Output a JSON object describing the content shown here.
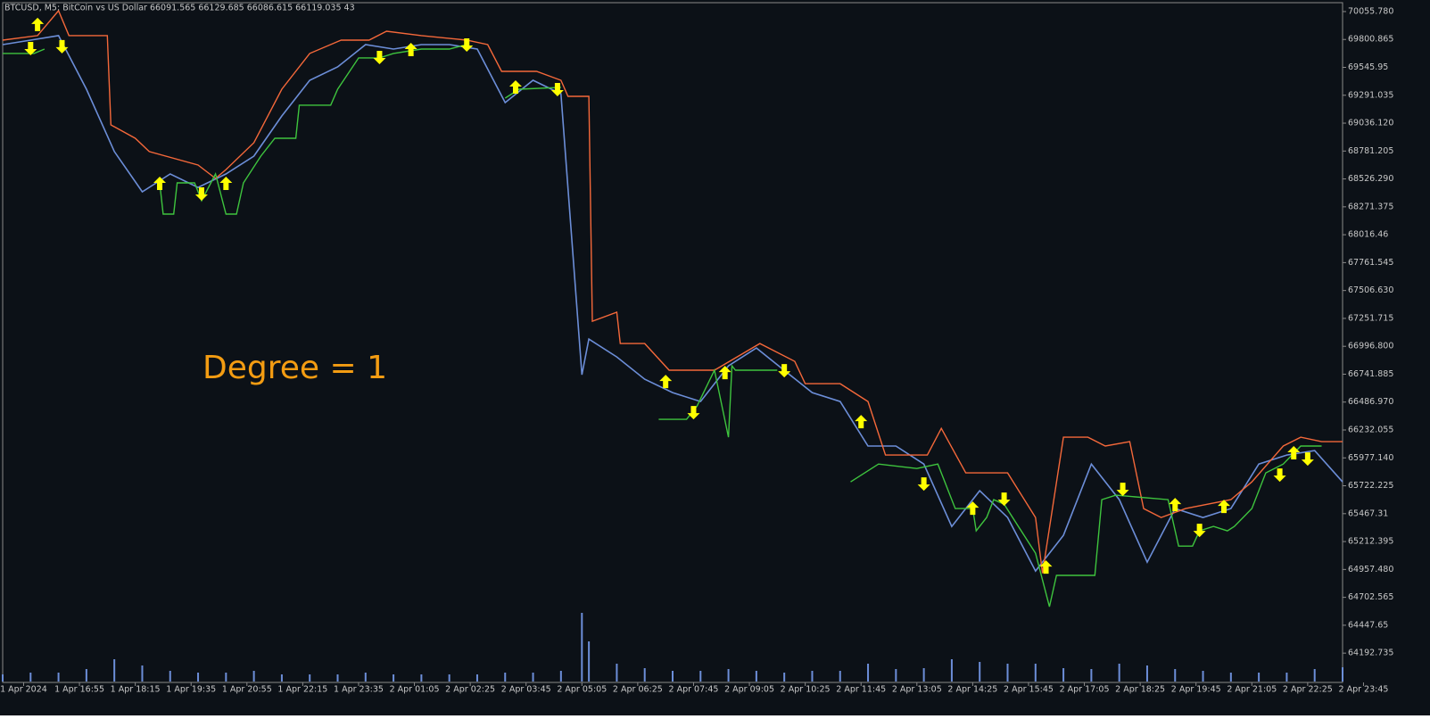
{
  "chart_data": {
    "type": "line",
    "title": "BTCUSD, M5:  BitCoin vs US Dollar  66091.565 66129.685 66086.615 66119.035  43",
    "annotation": "Degree = 1",
    "annotation_color": "#f39c12",
    "background": "#0c1117",
    "xlim": [
      0,
      384
    ],
    "ylim": [
      63925,
      70137
    ],
    "yticks": [
      {
        "value": 70055.78,
        "label": "70055.780"
      },
      69800.865,
      69545.95,
      69291.035,
      {
        "value": 69036.12,
        "label": "69036.120"
      },
      68781.205,
      {
        "value": 68526.29,
        "label": "68526.290"
      },
      68271.375,
      68016.46,
      67761.545,
      {
        "value": 67506.63,
        "label": "67506.630"
      },
      67251.715,
      {
        "value": 66996.8,
        "label": "66996.800"
      },
      66741.885,
      {
        "value": 66486.97,
        "label": "66486.970"
      },
      66232.055,
      {
        "value": 65977.14,
        "label": "65977.140"
      },
      65722.225,
      65467.31,
      65212.395,
      {
        "value": 64957.48,
        "label": "64957.480"
      },
      64702.565,
      64447.65,
      64192.735
    ],
    "xticks": [
      {
        "value": 6,
        "label": "1 Apr 2024"
      },
      {
        "value": 22,
        "label": "1 Apr 16:55"
      },
      {
        "value": 38,
        "label": "1 Apr 18:15"
      },
      {
        "value": 54,
        "label": "1 Apr 19:35"
      },
      {
        "value": 70,
        "label": "1 Apr 20:55"
      },
      {
        "value": 86,
        "label": "1 Apr 22:15"
      },
      {
        "value": 102,
        "label": "1 Apr 23:35"
      },
      {
        "value": 118,
        "label": "2 Apr 01:05"
      },
      {
        "value": 134,
        "label": "2 Apr 02:25"
      },
      {
        "value": 150,
        "label": "2 Apr 03:45"
      },
      {
        "value": 166,
        "label": "2 Apr 05:05"
      },
      {
        "value": 182,
        "label": "2 Apr 06:25"
      },
      {
        "value": 198,
        "label": "2 Apr 07:45"
      },
      {
        "value": 214,
        "label": "2 Apr 09:05"
      },
      {
        "value": 230,
        "label": "2 Apr 10:25"
      },
      {
        "value": 246,
        "label": "2 Apr 11:45"
      },
      {
        "value": 262,
        "label": "2 Apr 13:05"
      },
      {
        "value": 278,
        "label": "2 Apr 14:25"
      },
      {
        "value": 294,
        "label": "2 Apr 15:45"
      },
      {
        "value": 310,
        "label": "2 Apr 17:05"
      },
      {
        "value": 326,
        "label": "2 Apr 18:25"
      },
      {
        "value": 342,
        "label": "2 Apr 19:45"
      },
      {
        "value": 358,
        "label": "2 Apr 21:05"
      },
      {
        "value": 374,
        "label": "2 Apr 22:25"
      },
      {
        "value": 390,
        "label": "2 Apr 23:45"
      }
    ],
    "x": [
      0,
      8,
      16,
      24,
      32,
      40,
      48,
      56,
      64,
      72,
      80,
      88,
      96,
      104,
      112,
      120,
      128,
      136,
      144,
      152,
      160,
      166,
      168,
      176,
      184,
      192,
      200,
      208,
      216,
      224,
      232,
      240,
      248,
      256,
      264,
      272,
      280,
      288,
      296,
      304,
      312,
      320,
      328,
      336,
      344,
      352,
      360,
      368,
      376,
      384
    ],
    "series": [
      {
        "color": "#6c8ed8",
        "values": [
          69754,
          69795,
          69836,
          69346,
          68776,
          68409,
          68572,
          68449,
          68572,
          68735,
          69102,
          69428,
          69550,
          69754,
          69713,
          69754,
          69754,
          69713,
          69224,
          69428,
          69305,
          66737,
          67063,
          66900,
          66696,
          66574,
          66492,
          66818,
          66981,
          66777,
          66574,
          66492,
          66085,
          66085,
          65921,
          65350,
          65677,
          65432,
          64943,
          65269,
          65921,
          65595,
          65024,
          65514,
          65432,
          65514,
          65921,
          66003,
          66044,
          65758
        ]
      },
      {
        "color": "#f4683a",
        "x": [
          0,
          10,
          16,
          19,
          30,
          31,
          38,
          42,
          56,
          61,
          64,
          72,
          80,
          88,
          97,
          105,
          110,
          120,
          133,
          139,
          143,
          153,
          160,
          162,
          168,
          169,
          176,
          177,
          184,
          191,
          204,
          217,
          227,
          230,
          240,
          248,
          253,
          265,
          269,
          276,
          288,
          296,
          298,
          304,
          311,
          316,
          323,
          327,
          332,
          339,
          352,
          358,
          367,
          372,
          378,
          384
        ],
        "values": [
          69795,
          69836,
          70064,
          69836,
          69836,
          69020,
          68898,
          68776,
          68653,
          68531,
          68612,
          68857,
          69346,
          69673,
          69795,
          69795,
          69876,
          69836,
          69795,
          69754,
          69509,
          69509,
          69428,
          69281,
          69281,
          67226,
          67308,
          67022,
          67022,
          66778,
          66778,
          67022,
          66859,
          66655,
          66655,
          66492,
          66003,
          66003,
          66247,
          65840,
          65840,
          65432,
          64924,
          66166,
          66166,
          66085,
          66125,
          65514,
          65432,
          65514,
          65595,
          65758,
          66085,
          66166,
          66125,
          66125
        ]
      },
      {
        "color": "#3ec43e",
        "x": [
          0,
          9,
          12,
          28,
          45,
          46,
          49,
          50,
          55,
          57,
          61,
          64,
          67,
          69,
          74,
          78,
          84,
          85,
          94,
          96,
          102,
          108,
          112,
          120,
          128,
          133,
          138,
          144,
          148,
          160,
          174,
          188,
          196,
          199,
          204,
          208,
          209,
          210,
          222,
          232,
          243,
          251,
          262,
          268,
          273,
          278,
          279,
          282,
          284,
          287,
          296,
          300,
          302,
          313,
          315,
          319,
          334,
          337,
          341,
          343,
          347,
          351,
          353,
          358,
          362,
          367,
          372,
          378
        ],
        "values": [
          69673,
          69673,
          69713,
          null,
          68490,
          68205,
          68205,
          68490,
          68490,
          68327,
          68572,
          68205,
          68205,
          68490,
          68735,
          68898,
          68898,
          69200,
          69200,
          69346,
          69632,
          69632,
          69673,
          69713,
          69713,
          69754,
          null,
          69265,
          69346,
          69363,
          null,
          66329,
          66329,
          66451,
          66778,
          66166,
          66818,
          66778,
          66778,
          null,
          65758,
          65921,
          65880,
          65921,
          65514,
          65514,
          65310,
          65432,
          65595,
          65554,
          65106,
          64617,
          64903,
          64903,
          65595,
          65636,
          65595,
          65171,
          65171,
          65310,
          65351,
          65310,
          65351,
          65514,
          65840,
          65921,
          66085,
          66085
        ]
      }
    ],
    "up_arrows": {
      "color": "#ffff00",
      "x": [
        10,
        45,
        64,
        117,
        147,
        190,
        207,
        246,
        278,
        299,
        336,
        350,
        370
      ],
      "values": [
        69999,
        68547,
        68547,
        69770,
        69428,
        66737,
        66818,
        66370,
        65579,
        65041,
        65612,
        65595,
        66085
      ]
    },
    "down_arrows": {
      "color": "#ffff00",
      "x": [
        8,
        17,
        57,
        108,
        133,
        159,
        198,
        224,
        264,
        287,
        321,
        343,
        366,
        374
      ],
      "values": [
        69656,
        69673,
        68327,
        69575,
        69689,
        69281,
        66329,
        66712,
        65677,
        65538,
        65628,
        65253,
        65758,
        65905
      ]
    },
    "volume": {
      "color": "#6c8ed8",
      "vlim": [
        0,
        100
      ],
      "values": [
        8,
        10,
        10,
        14,
        25,
        18,
        12,
        10,
        10,
        12,
        8,
        8,
        8,
        10,
        8,
        8,
        8,
        8,
        10,
        10,
        12,
        77,
        45,
        20,
        15,
        12,
        12,
        14,
        12,
        10,
        12,
        12,
        20,
        14,
        15,
        25,
        22,
        20,
        20,
        15,
        14,
        20,
        18,
        14,
        12,
        10,
        10,
        10,
        14,
        16
      ]
    }
  }
}
